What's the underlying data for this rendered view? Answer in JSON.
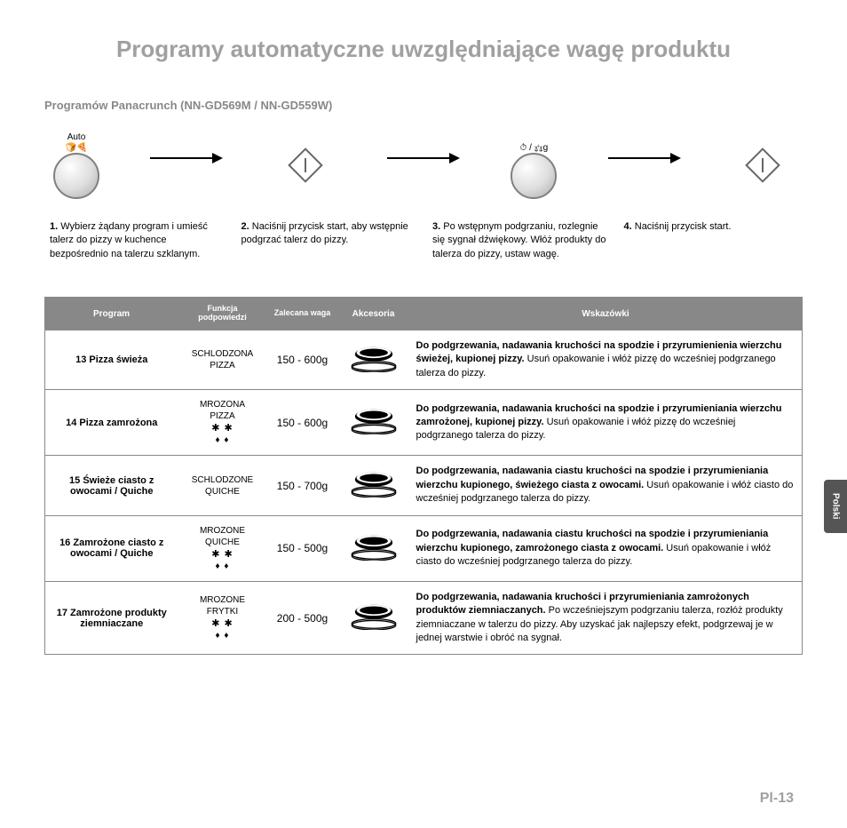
{
  "title": "Programy automatyczne uwzględniające wagę produktu",
  "subtitle": "Programów Panacrunch (NN-GD569M / NN-GD559W)",
  "flow": {
    "dial1_top": "Auto",
    "dial2_top": "⏱ / ⚖g"
  },
  "steps": [
    {
      "num": "1.",
      "text": "Wybierz żądany program i umieść talerz do pizzy w kuchence bezpośrednio na talerzu szklanym."
    },
    {
      "num": "2.",
      "text": "Naciśnij przycisk start, aby wstępnie podgrzać talerz do pizzy."
    },
    {
      "num": "3.",
      "text": "Po wstępnym podgrzaniu, rozlegnie się sygnał dźwiękowy. Włóż produkty do talerza do pizzy, ustaw wagę."
    },
    {
      "num": "4.",
      "text": "Naciśnij przycisk start."
    }
  ],
  "table": {
    "headers": {
      "program": "Program",
      "hint": "Funkcja podpowiedzi",
      "weight": "Zalecana waga",
      "acc": "Akcesoria",
      "tips": "Wskazówki"
    },
    "rows": [
      {
        "program": "13 Pizza świeża",
        "hint_lines": [
          "SCHLODZONA",
          "PIZZA"
        ],
        "frozen": false,
        "weight": "150 - 600g",
        "tip_bold": "Do podgrzewania, nadawania kruchości na spodzie i przyrumienienia wierzchu świeżej, kupionej pizzy.",
        "tip_rest": " Usuń opakowanie i włóż pizzę do wcześniej podgrzanego talerza do pizzy."
      },
      {
        "program": "14 Pizza zamrożona",
        "hint_lines": [
          "MROZONA",
          "PIZZA"
        ],
        "frozen": true,
        "weight": "150 - 600g",
        "tip_bold": "Do podgrzewania, nadawania kruchości na spodzie i przyrumieniania wierzchu zamrożonej, kupionej pizzy.",
        "tip_rest": " Usuń opakowanie i włóż pizzę do wcześniej podgrzanego talerza do pizzy."
      },
      {
        "program": "15 Świeże ciasto z owocami / Quiche",
        "hint_lines": [
          "SCHLODZONE",
          "QUICHE"
        ],
        "frozen": false,
        "weight": "150 - 700g",
        "tip_bold": "Do podgrzewania, nadawania ciastu kruchości na spodzie i przyrumieniania wierzchu kupionego, świeżego ciasta z owocami.",
        "tip_rest": " Usuń opakowanie i włóż ciasto do wcześniej podgrzanego talerza do pizzy."
      },
      {
        "program": "16 Zamrożone ciasto z owocami / Quiche",
        "hint_lines": [
          "MROZONE",
          "QUICHE"
        ],
        "frozen": true,
        "weight": "150 - 500g",
        "tip_bold": "Do podgrzewania, nadawania ciastu kruchości na spodzie i przyrumieniania wierzchu kupionego, zamrożonego ciasta z owocami.",
        "tip_rest": " Usuń opakowanie i włóż ciasto do wcześniej podgrzanego talerza do pizzy."
      },
      {
        "program": "17 Zamrożone produkty ziemniaczane",
        "hint_lines": [
          "MROZONE",
          "FRYTKI"
        ],
        "frozen": true,
        "weight": "200 - 500g",
        "tip_bold": "Do podgrzewania, nadawania kruchości i przyrumieniania zamrożonych produktów ziemniaczanych.",
        "tip_rest": " Po wcześniejszym podgrzaniu talerza, rozłóż produkty ziemniaczane w talerzu do pizzy. Aby uzyskać jak najlepszy efekt, podgrzewaj je w jednej warstwie i obróć na sygnał."
      }
    ]
  },
  "page_num": "Pl-13",
  "lang_tab": "Polski"
}
